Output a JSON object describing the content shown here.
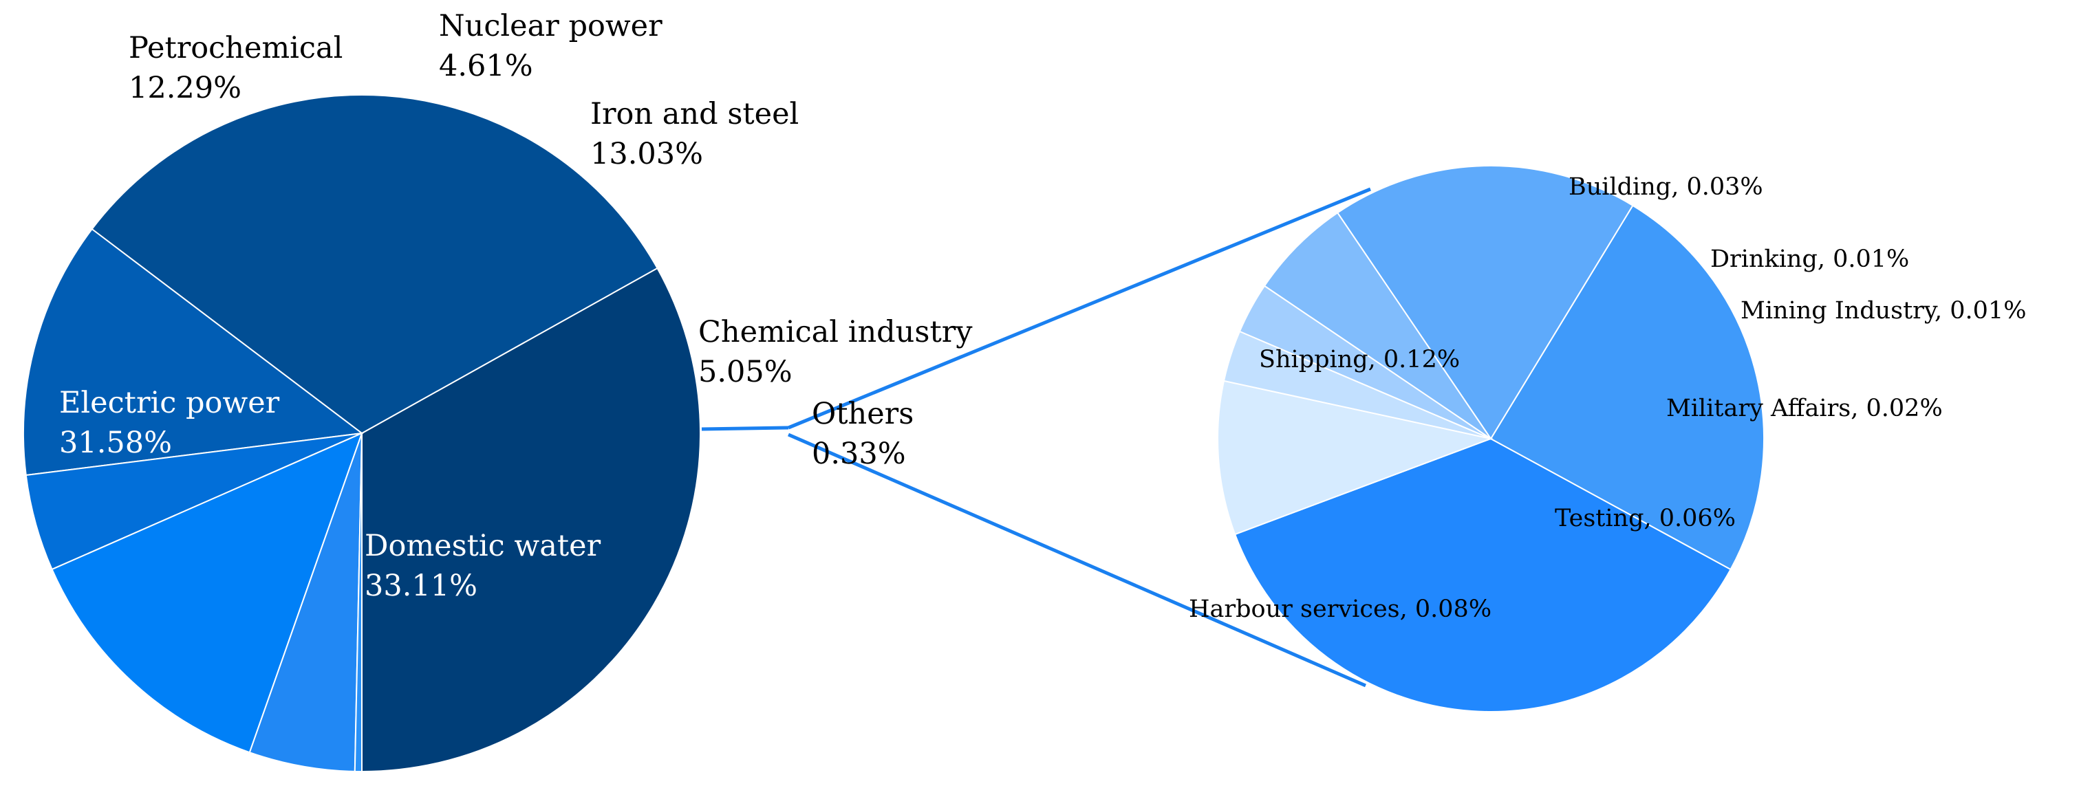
{
  "chart_data": [
    {
      "type": "pie",
      "title": "",
      "slices": [
        {
          "label": "Domestic water",
          "value": 33.11,
          "value_text": "33.11%",
          "color": "#003e78"
        },
        {
          "label": "Electric power",
          "value": 31.58,
          "value_text": "31.58%",
          "color": "#014e94"
        },
        {
          "label": "Petrochemical",
          "value": 12.29,
          "value_text": "12.29%",
          "color": "#015db4"
        },
        {
          "label": "Nuclear power",
          "value": 4.61,
          "value_text": "4.61%",
          "color": "#026fd9"
        },
        {
          "label": "Iron and steel",
          "value": 13.03,
          "value_text": "13.03%",
          "color": "#0080f7"
        },
        {
          "label": "Chemical industry",
          "value": 5.05,
          "value_text": "5.05%",
          "color": "#2188f4"
        },
        {
          "label": "Others",
          "value": 0.33,
          "value_text": "0.33%",
          "color": "#2991f7"
        }
      ],
      "start": "6 o'clock, counterclockwise",
      "legend": "none"
    },
    {
      "type": "pie",
      "title": "",
      "description_of": "Others",
      "slices": [
        {
          "label": "Shipping, 0.12%",
          "value": 0.12,
          "color": "#2188fe"
        },
        {
          "label": "Harbour services, 0.08%",
          "value": 0.08,
          "color": "#3f9afa"
        },
        {
          "label": "Testing, 0.06%",
          "value": 0.06,
          "color": "#5eaafb"
        },
        {
          "label": "Military Affairs, 0.02%",
          "value": 0.02,
          "color": "#80bcfc"
        },
        {
          "label": "Mining Industry, 0.01%",
          "value": 0.01,
          "color": "#a2cefe"
        },
        {
          "label": "Drinking, 0.01%",
          "value": 0.01,
          "color": "#c2e0ff"
        },
        {
          "label": "Building, 0.03%",
          "value": 0.03,
          "color": "#d6ebff"
        }
      ],
      "legend": "none"
    }
  ],
  "connector_color": "#1a80f0"
}
